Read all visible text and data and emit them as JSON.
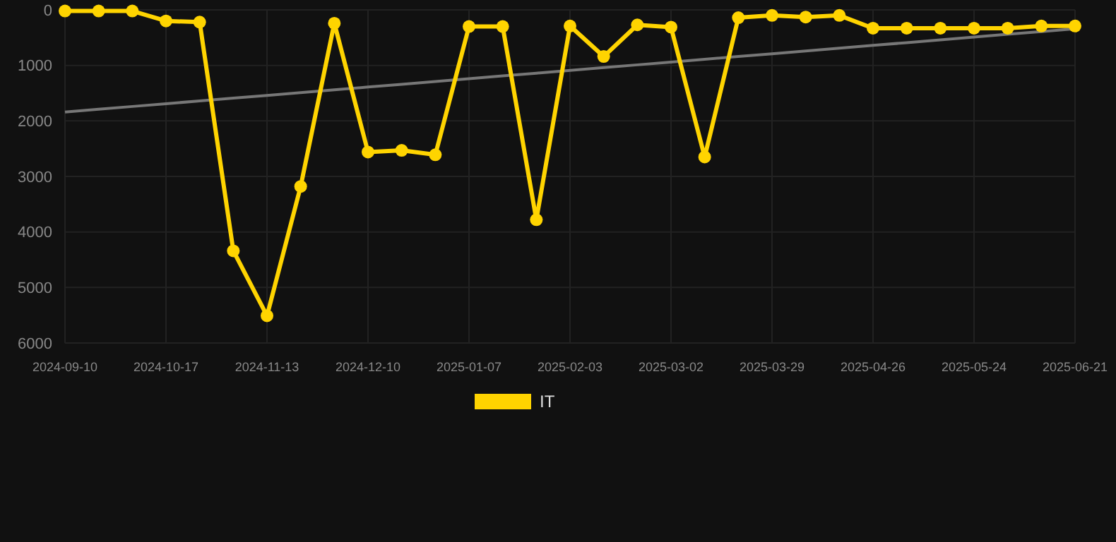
{
  "chart_data": {
    "type": "line",
    "categories": [
      "2024-09-10",
      null,
      null,
      "2024-10-17",
      null,
      null,
      "2024-11-13",
      null,
      null,
      "2024-12-10",
      null,
      null,
      "2025-01-07",
      null,
      null,
      "2025-02-03",
      null,
      null,
      "2025-03-02",
      null,
      null,
      "2025-03-29",
      null,
      null,
      "2025-04-26",
      null,
      null,
      "2025-05-24",
      null,
      null,
      "2025-06-21"
    ],
    "series": [
      {
        "name": "IT",
        "color": "#ffd400",
        "values": [
          20,
          20,
          20,
          200,
          220,
          4340,
          5510,
          3180,
          240,
          2560,
          2530,
          2610,
          300,
          300,
          3780,
          290,
          840,
          270,
          310,
          2650,
          140,
          100,
          130,
          100,
          330,
          330,
          330,
          330,
          330,
          290,
          290
        ]
      },
      {
        "color": "#777777",
        "values": [
          1840,
          1790,
          1740,
          1690,
          1640,
          1590,
          1540,
          1490,
          1440,
          1390,
          1340,
          1290,
          1240,
          1190,
          1140,
          1090,
          1040,
          990,
          940,
          890,
          840,
          790,
          740,
          690,
          640,
          590,
          540,
          490,
          440,
          390,
          340
        ],
        "marker": "none"
      }
    ],
    "ylim": [
      6000,
      0
    ],
    "yticks": [
      0,
      1000,
      2000,
      3000,
      4000,
      5000,
      6000
    ],
    "grid": true,
    "legend": "bottom",
    "marker": "circle"
  }
}
